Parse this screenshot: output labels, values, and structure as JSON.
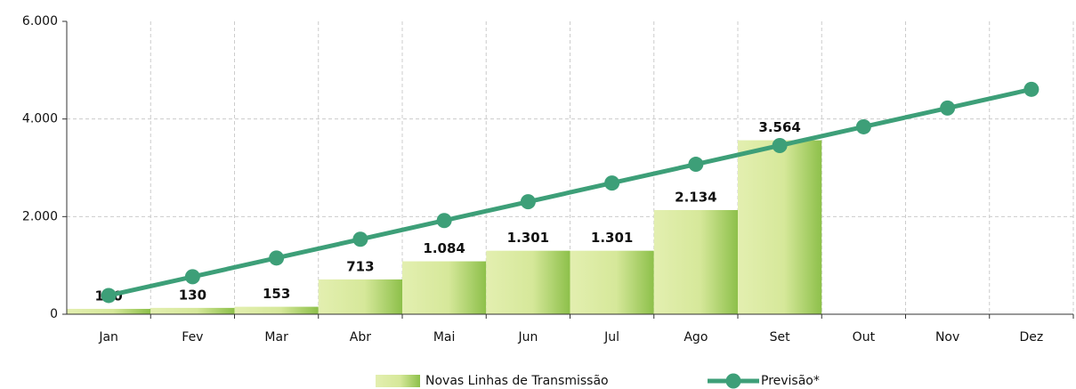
{
  "chart_data": {
    "type": "bar-line",
    "categories": [
      "Jan",
      "Fev",
      "Mar",
      "Abr",
      "Mai",
      "Jun",
      "Jul",
      "Ago",
      "Set",
      "Out",
      "Nov",
      "Dez"
    ],
    "series": [
      {
        "name": "Novas Linhas de Transmissão",
        "type": "bar",
        "color": "#8dc04a",
        "values": [
          110,
          130,
          153,
          713,
          1084,
          1301,
          1301,
          2134,
          3564,
          null,
          null,
          null
        ],
        "value_labels": [
          "110",
          "130",
          "153",
          "713",
          "1.084",
          "1.301",
          "1.301",
          "2.134",
          "3.564",
          null,
          null,
          null
        ]
      },
      {
        "name": "Previsão*",
        "type": "line",
        "color": "#3d9f78",
        "values": [
          384,
          768,
          1152,
          1536,
          1920,
          2304,
          2688,
          3072,
          3456,
          3840,
          4224,
          4608
        ]
      }
    ],
    "ylim": [
      0,
      6000
    ],
    "yticks": [
      0,
      {
        "value": 2000,
        "label": "2.000"
      },
      {
        "value": 4000,
        "label": "4.000"
      },
      {
        "value": 6000,
        "label": "6.000"
      }
    ],
    "grid": true
  }
}
